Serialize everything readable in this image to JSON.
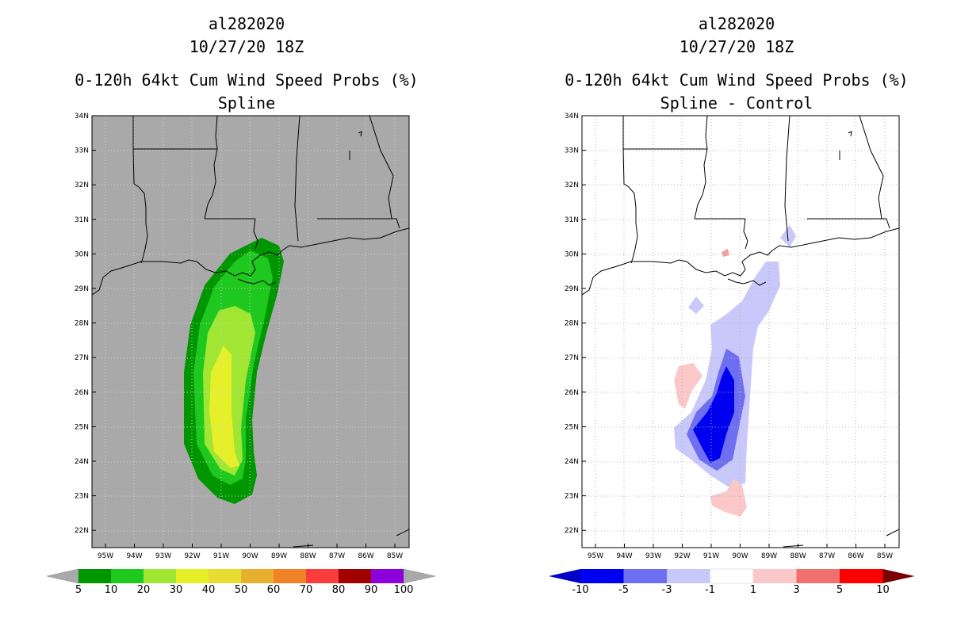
{
  "panels": [
    {
      "storm_id": "al282020",
      "datetime": "10/27/20 18Z",
      "product": "0-120h 64kt Cum Wind Speed Probs (%)",
      "subtitle": "Spline",
      "background_color": "#a9a9a9",
      "colorbar": {
        "labels": [
          "5",
          "10",
          "20",
          "30",
          "40",
          "50",
          "60",
          "70",
          "80",
          "90",
          "100"
        ],
        "colors": [
          "#009600",
          "#1ec81e",
          "#a0e632",
          "#e6f028",
          "#e6dc32",
          "#e6af2d",
          "#f08228",
          "#fa3c3c",
          "#a00000",
          "#8c00dc"
        ],
        "end_color": "#a9a9a9"
      }
    },
    {
      "storm_id": "al282020",
      "datetime": "10/27/20 18Z",
      "product": "0-120h 64kt Cum Wind Speed Probs (%)",
      "subtitle": "Spline - Control",
      "background_color": "#ffffff",
      "colorbar": {
        "labels": [
          "-10",
          "-5",
          "-3",
          "-1",
          "1",
          "3",
          "5",
          "10"
        ],
        "colors": [
          "#0000f0",
          "#6e6ef0",
          "#c8c8fa",
          "#ffffff",
          "#fac8c8",
          "#f07070",
          "#ff0000"
        ],
        "low_end_color": "#0000c8",
        "high_end_color": "#780000"
      }
    }
  ],
  "axes": {
    "lat_labels": [
      "34N",
      "33N",
      "32N",
      "31N",
      "30N",
      "29N",
      "28N",
      "27N",
      "26N",
      "25N",
      "24N",
      "23N",
      "22N"
    ],
    "lon_labels": [
      "95W",
      "94W",
      "93W",
      "92W",
      "91W",
      "90W",
      "89W",
      "88W",
      "87W",
      "86W",
      "85W"
    ]
  }
}
